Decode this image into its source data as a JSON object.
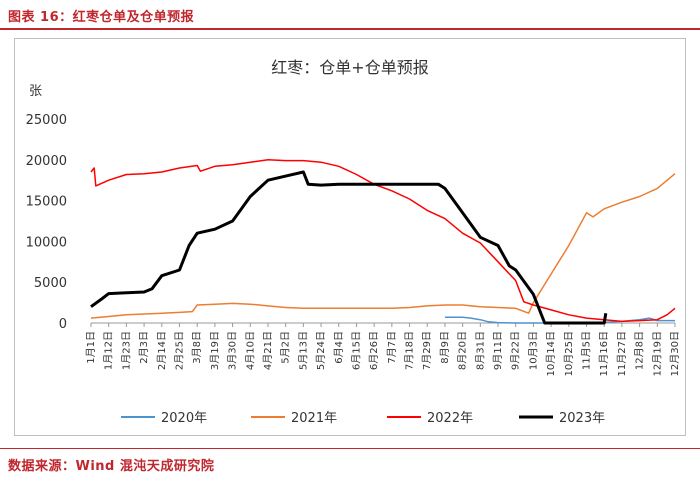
{
  "page": {
    "figure_label": "图表 16：红枣仓单及仓单预报",
    "source": "数据来源：Wind  混沌天成研究院"
  },
  "colors": {
    "accent": "#c0262d",
    "s2020": "#4e92cf",
    "s2021": "#ed7d31",
    "s2022": "#ff0000",
    "s2023": "#000000"
  },
  "chart_data": {
    "type": "line",
    "title": "红枣：仓单+仓单预报",
    "ylabel": "张",
    "ylim": [
      0,
      25000
    ],
    "yticks": [
      0,
      5000,
      10000,
      15000,
      20000,
      25000
    ],
    "grid": false,
    "legend_position": "bottom",
    "x_range": [
      "1月1日",
      "12月30日"
    ],
    "xtick_labels": [
      "1月1日",
      "1月12日",
      "1月23日",
      "2月3日",
      "2月14日",
      "2月25日",
      "3月8日",
      "3月19日",
      "3月30日",
      "4月10日",
      "4月21日",
      "5月2日",
      "5月13日",
      "5月24日",
      "6月4日",
      "6月15日",
      "6月26日",
      "7月7日",
      "7月18日",
      "7月29日",
      "8月9日",
      "8月20日",
      "8月31日",
      "9月11日",
      "9月22日",
      "10月3日",
      "10月14日",
      "10月25日",
      "11月5日",
      "11月16日",
      "11月27日",
      "12月8日",
      "12月19日",
      "12月30日"
    ],
    "series": [
      {
        "name": "2020年",
        "color": "#4e92cf",
        "width": 1.5,
        "points": [
          [
            "8月9日",
            700
          ],
          [
            "8月20日",
            700
          ],
          [
            "8月25日",
            600
          ],
          [
            "8月31日",
            400
          ],
          [
            "9月5日",
            150
          ],
          [
            "9月11日",
            50
          ],
          [
            "9月22日",
            0
          ],
          [
            "10月3日",
            0
          ],
          [
            "10月14日",
            0
          ],
          [
            "10月25日",
            0
          ],
          [
            "11月5日",
            0
          ],
          [
            "11月16日",
            100
          ],
          [
            "11月27日",
            200
          ],
          [
            "12月8日",
            400
          ],
          [
            "12月14日",
            600
          ],
          [
            "12月19日",
            300
          ],
          [
            "12月30日",
            300
          ]
        ]
      },
      {
        "name": "2021年",
        "color": "#ed7d31",
        "width": 1.5,
        "points": [
          [
            "1月1日",
            600
          ],
          [
            "1月12日",
            800
          ],
          [
            "1月23日",
            1000
          ],
          [
            "2月3日",
            1100
          ],
          [
            "2月14日",
            1200
          ],
          [
            "2月25日",
            1300
          ],
          [
            "3月5日",
            1400
          ],
          [
            "3月8日",
            2200
          ],
          [
            "3月19日",
            2300
          ],
          [
            "3月30日",
            2400
          ],
          [
            "4月10日",
            2300
          ],
          [
            "4月21日",
            2100
          ],
          [
            "5月2日",
            1900
          ],
          [
            "5月13日",
            1800
          ],
          [
            "5月24日",
            1800
          ],
          [
            "6月4日",
            1800
          ],
          [
            "6月15日",
            1800
          ],
          [
            "6月26日",
            1800
          ],
          [
            "7月7日",
            1800
          ],
          [
            "7月18日",
            1900
          ],
          [
            "7月29日",
            2100
          ],
          [
            "8月9日",
            2200
          ],
          [
            "8月20日",
            2200
          ],
          [
            "8月31日",
            2000
          ],
          [
            "9月11日",
            1900
          ],
          [
            "9月22日",
            1800
          ],
          [
            "9月30日",
            1200
          ],
          [
            "10月3日",
            2500
          ],
          [
            "10月14日",
            6000
          ],
          [
            "10月25日",
            9500
          ],
          [
            "11月5日",
            13500
          ],
          [
            "11月9日",
            13000
          ],
          [
            "11月16日",
            14000
          ],
          [
            "11月27日",
            14800
          ],
          [
            "12月8日",
            15500
          ],
          [
            "12月19日",
            16500
          ],
          [
            "12月30日",
            18300
          ]
        ]
      },
      {
        "name": "2022年",
        "color": "#ff0000",
        "width": 1.5,
        "points": [
          [
            "1月1日",
            18500
          ],
          [
            "1月3日",
            19000
          ],
          [
            "1月4日",
            16800
          ],
          [
            "1月12日",
            17500
          ],
          [
            "1月23日",
            18200
          ],
          [
            "2月3日",
            18300
          ],
          [
            "2月14日",
            18500
          ],
          [
            "2月25日",
            19000
          ],
          [
            "3月8日",
            19300
          ],
          [
            "3月10日",
            18600
          ],
          [
            "3月19日",
            19200
          ],
          [
            "3月30日",
            19400
          ],
          [
            "4月10日",
            19700
          ],
          [
            "4月21日",
            20000
          ],
          [
            "5月2日",
            19900
          ],
          [
            "5月13日",
            19900
          ],
          [
            "5月24日",
            19700
          ],
          [
            "6月4日",
            19200
          ],
          [
            "6月15日",
            18200
          ],
          [
            "6月26日",
            17000
          ],
          [
            "7月7日",
            16200
          ],
          [
            "7月18日",
            15200
          ],
          [
            "7月29日",
            13800
          ],
          [
            "8月9日",
            12800
          ],
          [
            "8月20日",
            11000
          ],
          [
            "8月31日",
            9800
          ],
          [
            "9月11日",
            7500
          ],
          [
            "9月22日",
            5200
          ],
          [
            "9月27日",
            2600
          ],
          [
            "10月3日",
            2200
          ],
          [
            "10月14日",
            1600
          ],
          [
            "10月25日",
            1000
          ],
          [
            "11月5日",
            600
          ],
          [
            "11月16日",
            400
          ],
          [
            "11月27日",
            200
          ],
          [
            "12月8日",
            300
          ],
          [
            "12月19日",
            400
          ],
          [
            "12月25日",
            1000
          ],
          [
            "12月30日",
            1800
          ]
        ]
      },
      {
        "name": "2023年",
        "color": "#000000",
        "width": 3,
        "points": [
          [
            "1月1日",
            2000
          ],
          [
            "1月8日",
            3000
          ],
          [
            "1月12日",
            3600
          ],
          [
            "1月23日",
            3700
          ],
          [
            "2月3日",
            3800
          ],
          [
            "2月8日",
            4200
          ],
          [
            "2月14日",
            5800
          ],
          [
            "2月25日",
            6500
          ],
          [
            "3月3日",
            9500
          ],
          [
            "3月8日",
            11000
          ],
          [
            "3月19日",
            11500
          ],
          [
            "3月30日",
            12500
          ],
          [
            "4月10日",
            15500
          ],
          [
            "4月21日",
            17500
          ],
          [
            "5月2日",
            18000
          ],
          [
            "5月13日",
            18500
          ],
          [
            "5月16日",
            17000
          ],
          [
            "5月24日",
            16900
          ],
          [
            "6月4日",
            17000
          ],
          [
            "6月15日",
            17000
          ],
          [
            "6月26日",
            17000
          ],
          [
            "7月7日",
            17000
          ],
          [
            "7月18日",
            17000
          ],
          [
            "7月29日",
            17000
          ],
          [
            "8月5日",
            17000
          ],
          [
            "8月9日",
            16500
          ],
          [
            "8月20日",
            13500
          ],
          [
            "8月31日",
            10500
          ],
          [
            "9月11日",
            9500
          ],
          [
            "9月18日",
            7000
          ],
          [
            "9月22日",
            6500
          ],
          [
            "10月3日",
            3500
          ],
          [
            "10月10日",
            0
          ],
          [
            "10月14日",
            0
          ],
          [
            "10月25日",
            0
          ],
          [
            "11月5日",
            0
          ],
          [
            "11月16日",
            0
          ],
          [
            "11月17日",
            1200
          ]
        ]
      }
    ]
  }
}
